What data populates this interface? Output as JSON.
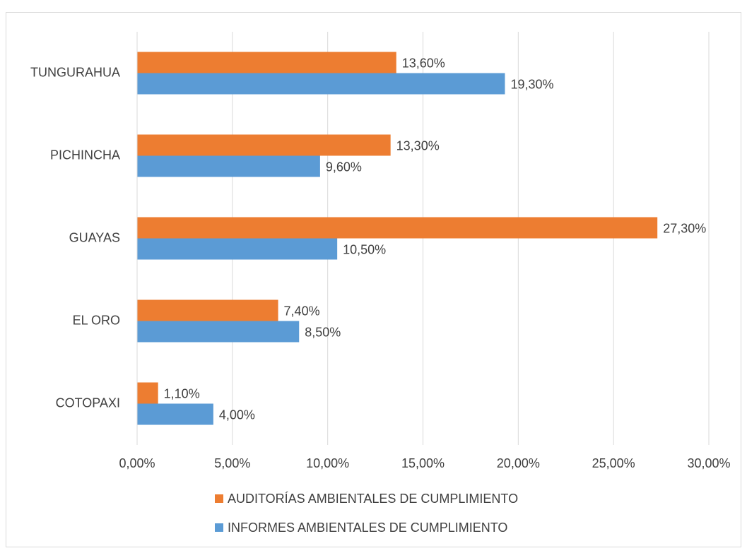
{
  "chart_data": {
    "type": "hbar",
    "categories": [
      "COTOPAXI",
      "EL ORO",
      "GUAYAS",
      "PICHINCHA",
      "TUNGURAHUA"
    ],
    "series": [
      {
        "name": "AUDITORÍAS AMBIENTALES DE CUMPLIMIENTO",
        "color": "#ed7d31",
        "values": [
          1.1,
          7.4,
          27.3,
          13.3,
          13.6
        ],
        "value_labels": [
          "1,10%",
          "7,40%",
          "27,30%",
          "13,30%",
          "13,60%"
        ]
      },
      {
        "name": "INFORMES AMBIENTALES DE CUMPLIMIENTO",
        "color": "#5b9bd5",
        "values": [
          4.0,
          8.5,
          10.5,
          9.6,
          19.3
        ],
        "value_labels": [
          "4,00%",
          "8,50%",
          "10,50%",
          "9,60%",
          "19,30%"
        ]
      }
    ],
    "xlim": [
      0,
      30
    ],
    "xticks": [
      {
        "value": 0,
        "label": "0,00%"
      },
      {
        "value": 5,
        "label": "5,00%"
      },
      {
        "value": 10,
        "label": "10,00%"
      },
      {
        "value": 15,
        "label": "15,00%"
      },
      {
        "value": 20,
        "label": "20,00%"
      },
      {
        "value": 25,
        "label": "25,00%"
      },
      {
        "value": 30,
        "label": "30,00%"
      }
    ],
    "grid": true,
    "legend": "bottom"
  }
}
